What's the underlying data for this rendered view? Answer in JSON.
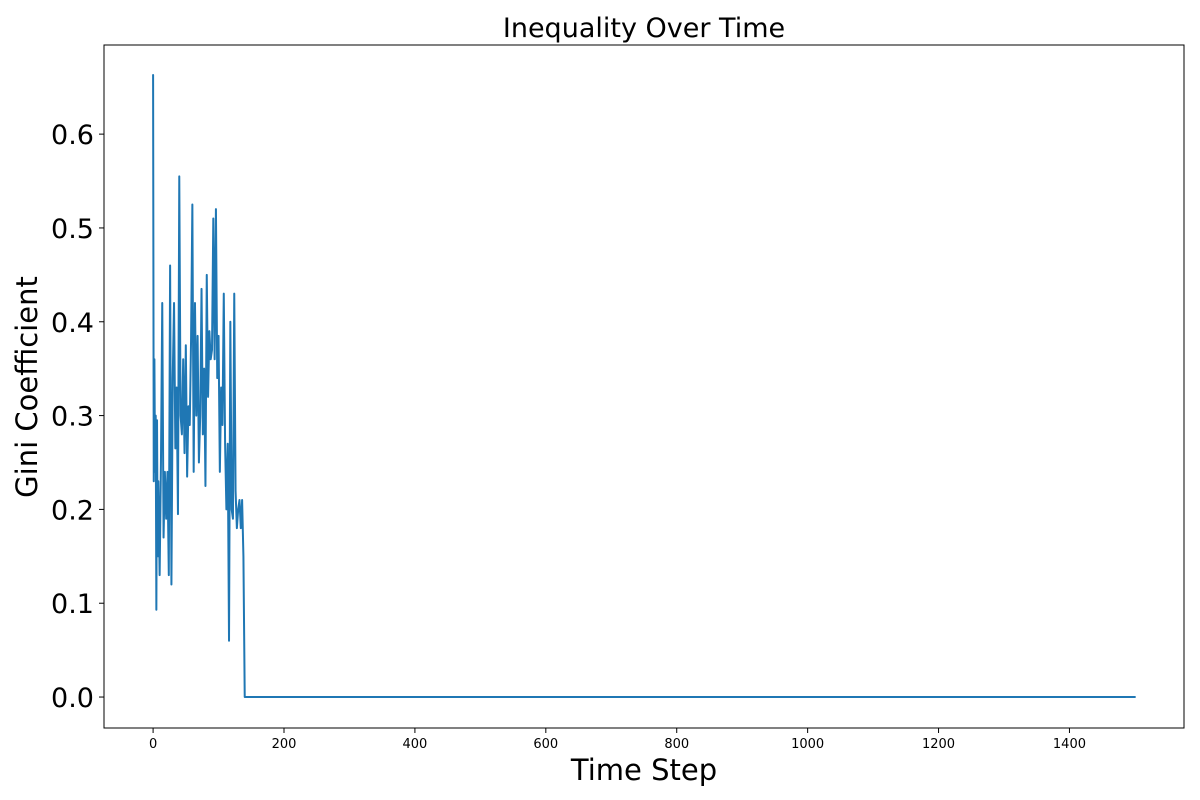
{
  "chart_data": {
    "type": "line",
    "title": "Inequality Over Time",
    "xlabel": "Time Step",
    "ylabel": "Gini Coefficient",
    "xlim": [
      -75,
      1575
    ],
    "ylim": [
      -0.033,
      0.695
    ],
    "xticks": [
      0,
      200,
      400,
      600,
      800,
      1000,
      1200,
      1400
    ],
    "yticks": [
      0.0,
      0.1,
      0.2,
      0.3,
      0.4,
      0.5,
      0.6
    ],
    "ytick_labels": [
      "0.0",
      "0.1",
      "0.2",
      "0.3",
      "0.4",
      "0.5",
      "0.6"
    ],
    "grid": false,
    "color": "#1f77b4",
    "series": [
      {
        "x": [
          0,
          1,
          2,
          3,
          4,
          5,
          6,
          7,
          8,
          10,
          12,
          14,
          16,
          18,
          20,
          22,
          24,
          26,
          28,
          30,
          32,
          34,
          36,
          38,
          40,
          42,
          44,
          46,
          48,
          50,
          52,
          54,
          56,
          58,
          60,
          62,
          64,
          66,
          68,
          70,
          72,
          74,
          76,
          78,
          80,
          82,
          84,
          86,
          88,
          90,
          92,
          94,
          96,
          98,
          100,
          102,
          104,
          106,
          108,
          110,
          112,
          114,
          116,
          118,
          120,
          122,
          124,
          126,
          128,
          130,
          132,
          134,
          136,
          138,
          140,
          142,
          144,
          146,
          148,
          1500
        ],
        "y": [
          0.663,
          0.23,
          0.36,
          0.24,
          0.3,
          0.093,
          0.295,
          0.15,
          0.23,
          0.13,
          0.25,
          0.42,
          0.17,
          0.24,
          0.19,
          0.24,
          0.13,
          0.46,
          0.12,
          0.34,
          0.42,
          0.265,
          0.33,
          0.195,
          0.555,
          0.3,
          0.28,
          0.36,
          0.26,
          0.375,
          0.235,
          0.31,
          0.29,
          0.38,
          0.525,
          0.24,
          0.42,
          0.3,
          0.385,
          0.25,
          0.3,
          0.435,
          0.28,
          0.35,
          0.225,
          0.45,
          0.32,
          0.39,
          0.36,
          0.37,
          0.51,
          0.36,
          0.52,
          0.34,
          0.385,
          0.24,
          0.33,
          0.29,
          0.43,
          0.27,
          0.2,
          0.27,
          0.06,
          0.4,
          0.2,
          0.19,
          0.43,
          0.22,
          0.18,
          0.2,
          0.21,
          0.18,
          0.21,
          0.15,
          0.0,
          0.0,
          0.0,
          0.0,
          0.0,
          0.0
        ]
      }
    ]
  }
}
